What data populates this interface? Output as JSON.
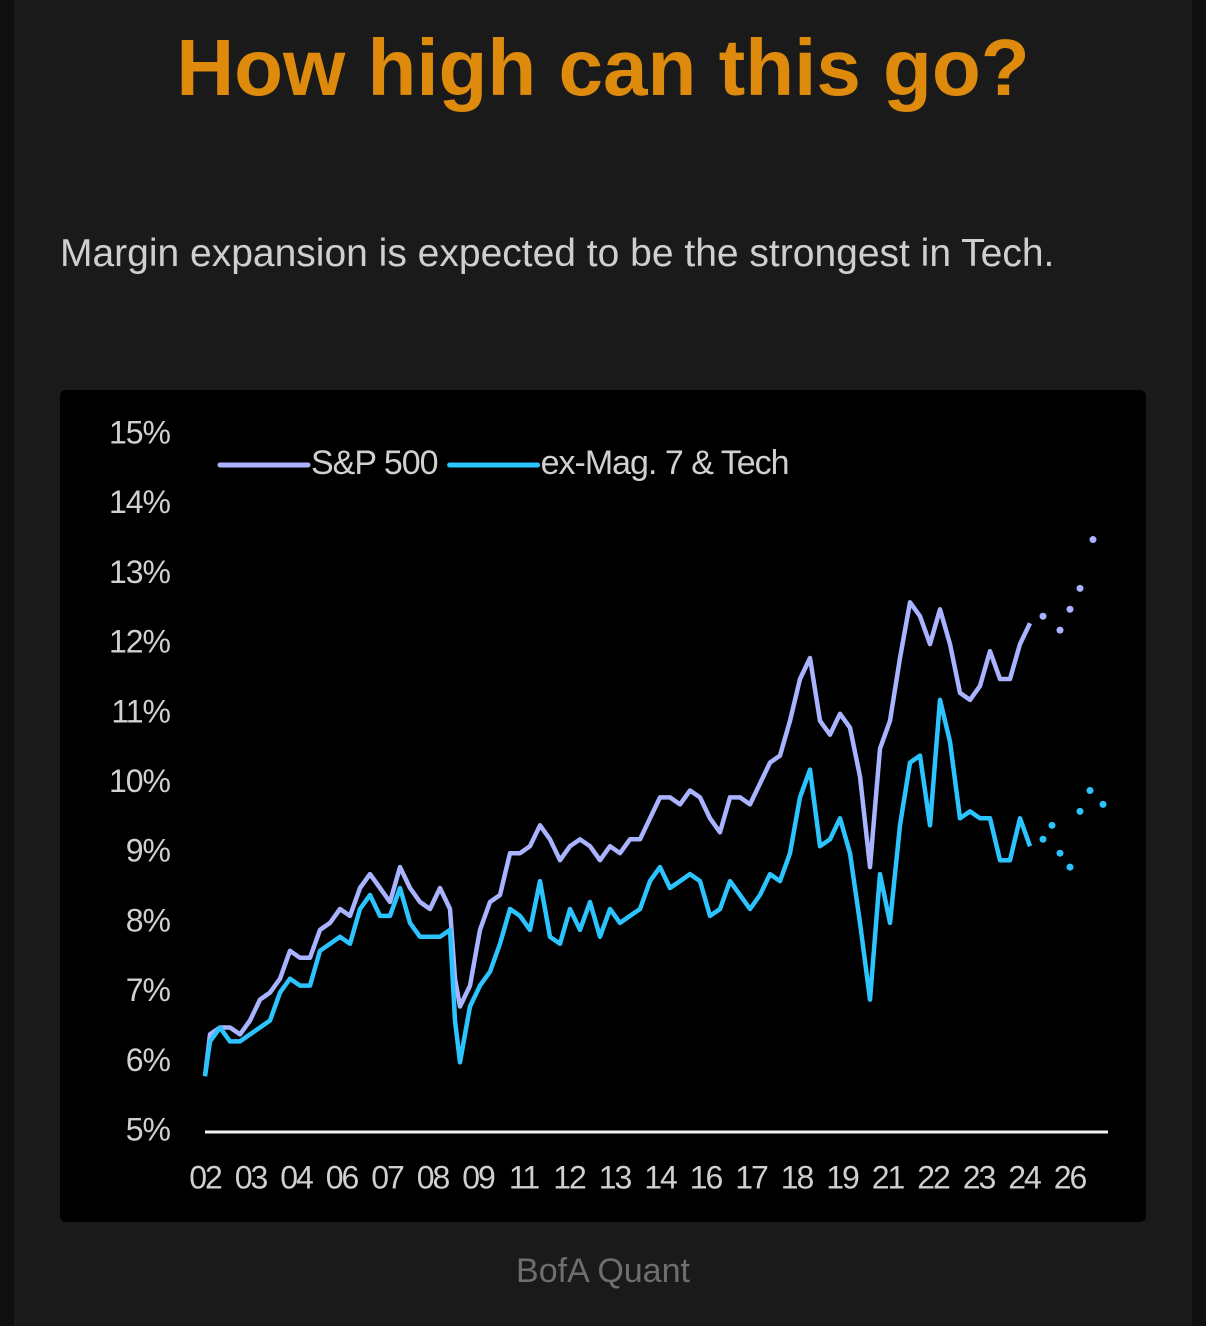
{
  "chart_data": {
    "type": "line",
    "title": "How high can this go?",
    "subtitle": "Margin expansion is expected to be the strongest in Tech.",
    "source": "BofA Quant",
    "xlim": [
      0,
      180.6
    ],
    "xticks": [
      {
        "value": 0,
        "label": "02"
      },
      {
        "value": 9.1,
        "label": "03"
      },
      {
        "value": 18.2,
        "label": "04"
      },
      {
        "value": 27.3,
        "label": "06"
      },
      {
        "value": 36.4,
        "label": "07"
      },
      {
        "value": 45.5,
        "label": "08"
      },
      {
        "value": 54.6,
        "label": "09"
      },
      {
        "value": 63.7,
        "label": "11"
      },
      {
        "value": 72.8,
        "label": "12"
      },
      {
        "value": 81.9,
        "label": "13"
      },
      {
        "value": 91,
        "label": "14"
      },
      {
        "value": 100.1,
        "label": "16"
      },
      {
        "value": 109.2,
        "label": "17"
      },
      {
        "value": 118.3,
        "label": "18"
      },
      {
        "value": 127.4,
        "label": "19"
      },
      {
        "value": 136.5,
        "label": "21"
      },
      {
        "value": 145.6,
        "label": "22"
      },
      {
        "value": 154.7,
        "label": "23"
      },
      {
        "value": 163.8,
        "label": "24"
      },
      {
        "value": 172.9,
        "label": "26"
      }
    ],
    "ylim": [
      5,
      15
    ],
    "yticks": [
      {
        "value": 15,
        "label": "15%"
      },
      {
        "value": 14,
        "label": "14%"
      },
      {
        "value": 13,
        "label": "13%"
      },
      {
        "value": 12,
        "label": "12%"
      },
      {
        "value": 11,
        "label": "11%"
      },
      {
        "value": 10,
        "label": "10%"
      },
      {
        "value": 9,
        "label": "9%"
      },
      {
        "value": 8,
        "label": "8%"
      },
      {
        "value": 7,
        "label": "7%"
      },
      {
        "value": 6,
        "label": "6%"
      },
      {
        "value": 5,
        "label": "5%"
      }
    ],
    "series": [
      {
        "name": "S&P 500",
        "color": "#a9b3ff",
        "style": "solid",
        "x": [
          0,
          1,
          3,
          5,
          7,
          9,
          11,
          13,
          15,
          17,
          19,
          21,
          23,
          25,
          27,
          29,
          31,
          33,
          35,
          37,
          39,
          41,
          43,
          45,
          47,
          49,
          50,
          51,
          53,
          55,
          57,
          59,
          61,
          63,
          65,
          67,
          69,
          71,
          73,
          75,
          77,
          79,
          81,
          83,
          85,
          87,
          89,
          91,
          93,
          95,
          97,
          99,
          101,
          103,
          105,
          107,
          109,
          111,
          113,
          115,
          117,
          119,
          121,
          123,
          125,
          127,
          129,
          131,
          133,
          135,
          137,
          139,
          141,
          143,
          145,
          147,
          149,
          151,
          153,
          155,
          157,
          159,
          161,
          163,
          165
        ],
        "values": [
          5.8,
          6.4,
          6.5,
          6.5,
          6.4,
          6.6,
          6.9,
          7.0,
          7.2,
          7.6,
          7.5,
          7.5,
          7.9,
          8.0,
          8.2,
          8.1,
          8.5,
          8.7,
          8.5,
          8.3,
          8.8,
          8.5,
          8.3,
          8.2,
          8.5,
          8.2,
          7.2,
          6.8,
          7.1,
          7.9,
          8.3,
          8.4,
          9.0,
          9.0,
          9.1,
          9.4,
          9.2,
          8.9,
          9.1,
          9.2,
          9.1,
          8.9,
          9.1,
          9.0,
          9.2,
          9.2,
          9.5,
          9.8,
          9.8,
          9.7,
          9.9,
          9.8,
          9.5,
          9.3,
          9.8,
          9.8,
          9.7,
          10.0,
          10.3,
          10.4,
          10.9,
          11.5,
          11.8,
          10.9,
          10.7,
          11.0,
          10.8,
          10.1,
          8.8,
          10.5,
          10.9,
          11.8,
          12.6,
          12.4,
          12.0,
          12.5,
          12.0,
          11.3,
          11.2,
          11.4,
          11.9,
          11.5,
          11.5,
          12.0,
          12.3
        ]
      },
      {
        "name": "ex-Mag. 7 & Tech",
        "color": "#2bc4ff",
        "style": "solid",
        "x": [
          0,
          1,
          3,
          5,
          7,
          9,
          11,
          13,
          15,
          17,
          19,
          21,
          23,
          25,
          27,
          29,
          31,
          33,
          35,
          37,
          39,
          41,
          43,
          45,
          47,
          49,
          50,
          51,
          53,
          55,
          57,
          59,
          61,
          63,
          65,
          67,
          69,
          71,
          73,
          75,
          77,
          79,
          81,
          83,
          85,
          87,
          89,
          91,
          93,
          95,
          97,
          99,
          101,
          103,
          105,
          107,
          109,
          111,
          113,
          115,
          117,
          119,
          121,
          123,
          125,
          127,
          129,
          131,
          133,
          135,
          137,
          139,
          141,
          143,
          145,
          147,
          149,
          151,
          153,
          155,
          157,
          159,
          161,
          163,
          165
        ],
        "values": [
          5.8,
          6.3,
          6.5,
          6.3,
          6.3,
          6.4,
          6.5,
          6.6,
          7.0,
          7.2,
          7.1,
          7.1,
          7.6,
          7.7,
          7.8,
          7.7,
          8.2,
          8.4,
          8.1,
          8.1,
          8.5,
          8.0,
          7.8,
          7.8,
          7.8,
          7.9,
          6.6,
          6.0,
          6.8,
          7.1,
          7.3,
          7.7,
          8.2,
          8.1,
          7.9,
          8.6,
          7.8,
          7.7,
          8.2,
          7.9,
          8.3,
          7.8,
          8.2,
          8.0,
          8.1,
          8.2,
          8.6,
          8.8,
          8.5,
          8.6,
          8.7,
          8.6,
          8.1,
          8.2,
          8.6,
          8.4,
          8.2,
          8.4,
          8.7,
          8.6,
          9.0,
          9.8,
          10.2,
          9.1,
          9.2,
          9.5,
          9.0,
          8.0,
          6.9,
          8.7,
          8.0,
          9.4,
          10.3,
          10.4,
          9.4,
          11.2,
          10.6,
          9.5,
          9.6,
          9.5,
          9.5,
          8.9,
          8.9,
          9.5,
          9.1
        ]
      },
      {
        "color": "#a9b3ff",
        "style": "dotted",
        "x": [
          167.6,
          171,
          173,
          175,
          177.6
        ],
        "values": [
          12.4,
          12.2,
          12.5,
          12.8,
          13.5
        ]
      },
      {
        "color": "#2bc4ff",
        "style": "dotted",
        "x": [
          167.6,
          169.4,
          171,
          173,
          175,
          177,
          179.6
        ],
        "values": [
          9.2,
          9.4,
          9.0,
          8.8,
          9.6,
          9.9,
          9.7
        ]
      }
    ]
  }
}
